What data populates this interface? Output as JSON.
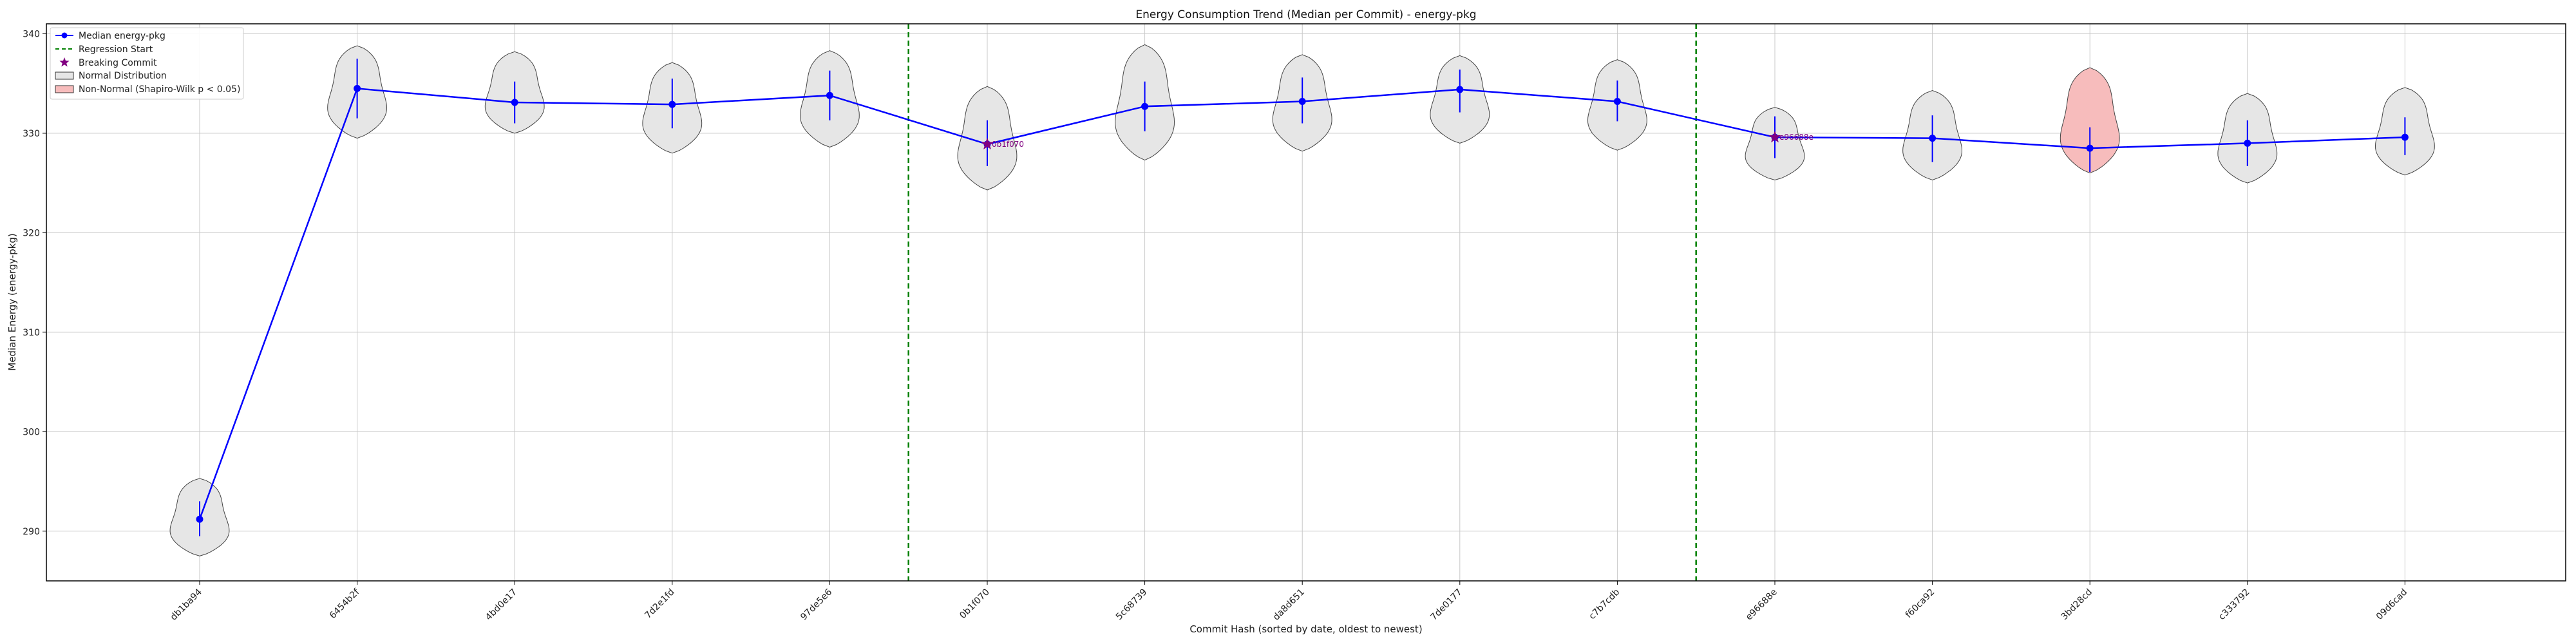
{
  "chart_data": {
    "type": "line",
    "title": "Energy Consumption Trend (Median per Commit) - energy-pkg",
    "xlabel": "Commit Hash (sorted by date, oldest to newest)",
    "ylabel": "Median Energy (energy-pkg)",
    "ylim": [
      285,
      341
    ],
    "yticks": [
      290,
      300,
      310,
      320,
      330,
      340
    ],
    "grid": true,
    "legend_position": "top-left",
    "categories": [
      "db1ba94",
      "6454b2f",
      "4bd0e17",
      "7d2e1fd",
      "97de5e6",
      "0b1f070",
      "5c68739",
      "da8d651",
      "7de0177",
      "c7b7cdb",
      "e96688e",
      "f60ca92",
      "3bd28cd",
      "c333792",
      "09d6cad"
    ],
    "series": [
      {
        "name": "Median energy-pkg",
        "color": "#0000ff",
        "values": [
          291.2,
          334.5,
          333.1,
          332.9,
          333.8,
          328.9,
          332.7,
          333.2,
          334.4,
          333.2,
          329.6,
          329.5,
          328.5,
          329.0,
          329.6
        ],
        "whiskers": [
          [
            289.5,
            293.0
          ],
          [
            331.5,
            337.5
          ],
          [
            331.0,
            335.2
          ],
          [
            330.5,
            335.5
          ],
          [
            331.3,
            336.3
          ],
          [
            326.7,
            331.3
          ],
          [
            330.2,
            335.2
          ],
          [
            331.0,
            335.6
          ],
          [
            332.1,
            336.4
          ],
          [
            331.2,
            335.3
          ],
          [
            327.5,
            331.7
          ],
          [
            327.1,
            331.8
          ],
          [
            326.1,
            330.6
          ],
          [
            326.7,
            331.3
          ],
          [
            327.8,
            331.6
          ]
        ]
      }
    ],
    "distributions": [
      {
        "min": 287.5,
        "max": 295.3,
        "status": "Normal"
      },
      {
        "min": 329.5,
        "max": 338.8,
        "status": "Normal"
      },
      {
        "min": 330.0,
        "max": 338.2,
        "status": "Normal"
      },
      {
        "min": 328.0,
        "max": 337.1,
        "status": "Normal"
      },
      {
        "min": 328.6,
        "max": 338.3,
        "status": "Normal"
      },
      {
        "min": 324.3,
        "max": 334.7,
        "status": "Normal"
      },
      {
        "min": 327.3,
        "max": 338.9,
        "status": "Normal"
      },
      {
        "min": 328.2,
        "max": 337.9,
        "status": "Normal"
      },
      {
        "min": 329.0,
        "max": 337.8,
        "status": "Normal"
      },
      {
        "min": 328.3,
        "max": 337.4,
        "status": "Normal"
      },
      {
        "min": 325.3,
        "max": 332.6,
        "status": "Normal"
      },
      {
        "min": 325.3,
        "max": 334.3,
        "status": "Normal"
      },
      {
        "min": 326.0,
        "max": 336.6,
        "status": "Non-Normal"
      },
      {
        "min": 325.0,
        "max": 334.0,
        "status": "Normal"
      },
      {
        "min": 325.8,
        "max": 334.6,
        "status": "Normal"
      }
    ],
    "regression_starts_after": [
      "97de5e6",
      "c7b7cdb"
    ],
    "breaking_commits": [
      {
        "commit": "0b1f070",
        "label": "0b1f070"
      },
      {
        "commit": "e96688e",
        "label": "e96688e"
      }
    ],
    "legend": [
      {
        "key": "median",
        "label": "Median energy-pkg"
      },
      {
        "key": "regression",
        "label": "Regression Start"
      },
      {
        "key": "breaking",
        "label": "Breaking Commit"
      },
      {
        "key": "normal",
        "label": "Normal Distribution"
      },
      {
        "key": "nonnormal",
        "label": "Non-Normal (Shapiro-Wilk p < 0.05)"
      }
    ],
    "colors": {
      "line": "#0000ff",
      "regression": "#008000",
      "breaking": "#800080",
      "normal_fill": "#e6e6e6",
      "nonnormal_fill": "#f7bcbc",
      "grid": "#c8c8c8"
    }
  }
}
